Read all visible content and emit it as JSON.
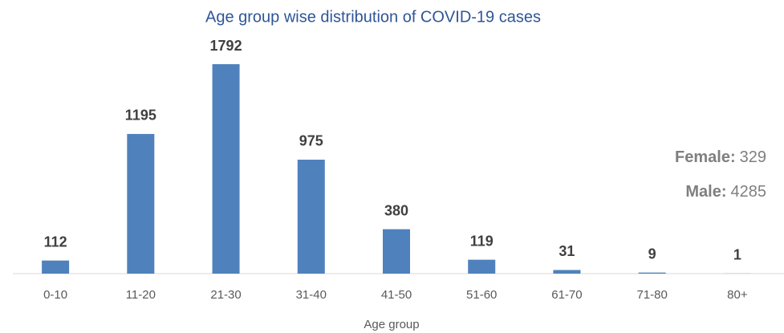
{
  "chart_data": {
    "type": "bar",
    "title": "Age group wise distribution of COVID-19 cases",
    "x_label": "Age group",
    "categories": [
      "0-10",
      "11-20",
      "21-30",
      "31-40",
      "41-50",
      "51-60",
      "61-70",
      "71-80",
      "80+"
    ],
    "values": [
      112,
      1195,
      1792,
      975,
      380,
      119,
      31,
      9,
      1
    ],
    "color": "#4f81bd",
    "annotations": [
      {
        "label": "Female:",
        "value": 329
      },
      {
        "label": "Male:",
        "value": 4285
      }
    ]
  }
}
